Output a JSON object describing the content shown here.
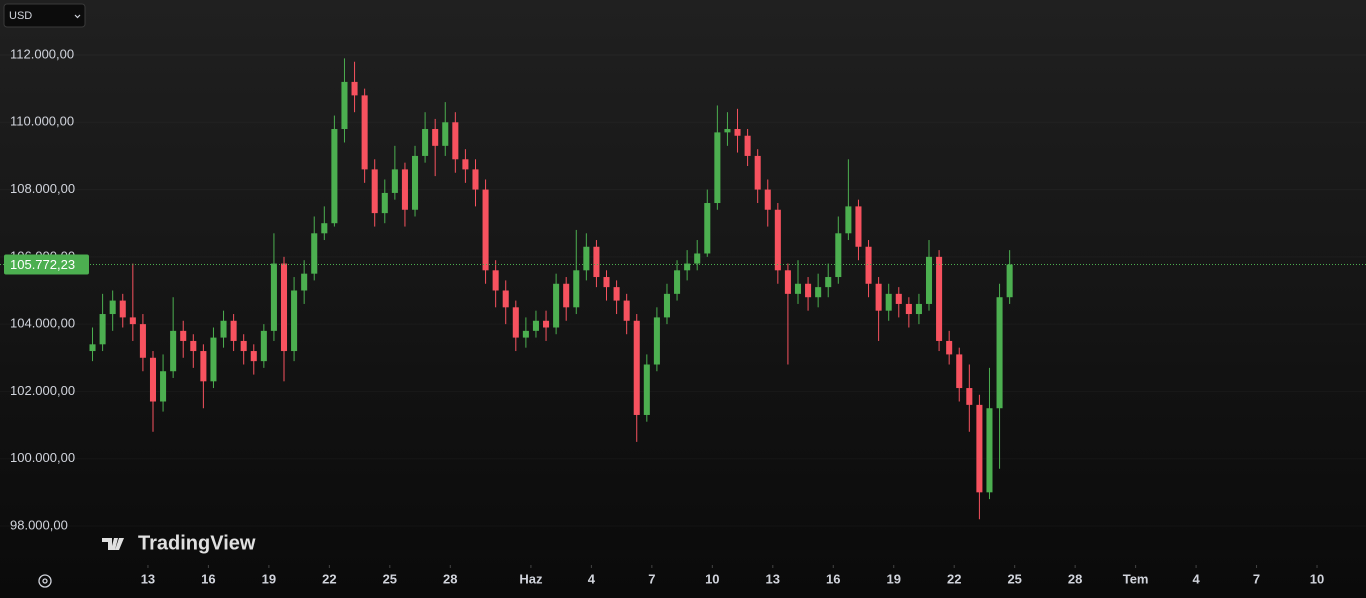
{
  "chart_data": {
    "type": "candlestick",
    "currency": "USD",
    "brand": "TradingView",
    "up_color": "#4caf50",
    "down_color": "#f7525f",
    "ylim": [
      96840,
      113635
    ],
    "yticks": [
      {
        "value": 98000,
        "label": "98.000,00"
      },
      {
        "value": 100000,
        "label": "100.000,00"
      },
      {
        "value": 102000,
        "label": "102.000,00"
      },
      {
        "value": 104000,
        "label": "104.000,00"
      },
      {
        "value": 106000,
        "label": "106.000,00"
      },
      {
        "value": 108000,
        "label": "108.000,00"
      },
      {
        "value": 110000,
        "label": "110.000,00"
      },
      {
        "value": 112000,
        "label": "112.000,00"
      }
    ],
    "xlim": [
      5.66,
      73.43
    ],
    "xticks": [
      13,
      16,
      19,
      22,
      25,
      28,
      {
        "value": 32,
        "label": "Haz"
      },
      {
        "value": 35,
        "label": "4"
      },
      {
        "value": 38,
        "label": "7"
      },
      {
        "value": 41,
        "label": "10"
      },
      {
        "value": 44,
        "label": "13"
      },
      {
        "value": 47,
        "label": "16"
      },
      {
        "value": 50,
        "label": "19"
      },
      {
        "value": 53,
        "label": "22"
      },
      {
        "value": 56,
        "label": "25"
      },
      {
        "value": 59,
        "label": "28"
      },
      {
        "value": 62,
        "label": "Tem"
      },
      {
        "value": 65,
        "label": "4"
      },
      {
        "value": 68,
        "label": "7"
      },
      {
        "value": 71,
        "label": "10"
      }
    ],
    "last_price": {
      "value": 105772.23,
      "label": "105.772,23"
    },
    "x": [
      10.25,
      10.75,
      11.25,
      11.75,
      12.25,
      12.75,
      13.25,
      13.75,
      14.25,
      14.75,
      15.25,
      15.75,
      16.25,
      16.75,
      17.25,
      17.75,
      18.25,
      18.75,
      19.25,
      19.75,
      20.25,
      20.75,
      21.25,
      21.75,
      22.25,
      22.75,
      23.25,
      23.75,
      24.25,
      24.75,
      25.25,
      25.75,
      26.25,
      26.75,
      27.25,
      27.75,
      28.25,
      28.75,
      29.25,
      29.75,
      30.25,
      30.75,
      31.25,
      31.75,
      32.25,
      32.75,
      33.25,
      33.75,
      34.25,
      34.75,
      35.25,
      35.75,
      36.25,
      36.75,
      37.25,
      37.75,
      38.25,
      38.75,
      39.25,
      39.75,
      40.25,
      40.75,
      41.25,
      41.75,
      42.25,
      42.75,
      43.25,
      43.75,
      44.25,
      44.75,
      45.25,
      45.75,
      46.25,
      46.75,
      47.25,
      47.75,
      48.25,
      48.75,
      49.25,
      49.75,
      50.25,
      50.75,
      51.25,
      51.75,
      52.25,
      52.75,
      53.25,
      53.75,
      54.25,
      54.75,
      55.25,
      55.75
    ],
    "open": [
      103200,
      103400,
      104300,
      104700,
      104200,
      104000,
      103000,
      101700,
      102600,
      103800,
      103500,
      103200,
      102300,
      103600,
      104100,
      103500,
      103200,
      102900,
      103800,
      105800,
      103200,
      105000,
      105500,
      106700,
      107000,
      109800,
      111200,
      110800,
      108600,
      107300,
      107900,
      108600,
      107400,
      109000,
      109800,
      109300,
      110000,
      108900,
      108600,
      108000,
      105600,
      105000,
      104500,
      103600,
      103800,
      104100,
      103900,
      105200,
      104500,
      105600,
      106300,
      105400,
      105100,
      104700,
      104100,
      101300,
      102800,
      104200,
      104900,
      105600,
      105800,
      106100,
      107600,
      109700,
      109800,
      109600,
      109000,
      108000,
      107400,
      105600,
      104900,
      105200,
      104800,
      105100,
      105400,
      106700,
      107500,
      106300,
      105200,
      104400,
      104900,
      104600,
      104300,
      104600,
      106000,
      103500,
      103100,
      102100,
      101600,
      99000,
      101500,
      104800
    ],
    "high": [
      103900,
      104900,
      105000,
      104900,
      105800,
      104300,
      103200,
      103100,
      104800,
      104100,
      103700,
      103400,
      103900,
      104400,
      104300,
      103700,
      103400,
      104000,
      106700,
      106000,
      105400,
      105900,
      107200,
      107500,
      110200,
      111900,
      111800,
      111000,
      108900,
      108300,
      109300,
      108800,
      109300,
      110300,
      110100,
      110600,
      110300,
      109200,
      108900,
      108300,
      105900,
      105300,
      104700,
      104200,
      104400,
      104400,
      105500,
      105400,
      106800,
      106700,
      106500,
      105600,
      105300,
      104900,
      104300,
      103100,
      104500,
      105200,
      105900,
      106200,
      106500,
      108000,
      110500,
      110300,
      110400,
      109800,
      109200,
      108300,
      107600,
      105800,
      105900,
      105400,
      105500,
      105800,
      107200,
      108900,
      107700,
      106500,
      105400,
      105200,
      105100,
      104800,
      104900,
      106500,
      106200,
      103800,
      103300,
      102800,
      101900,
      102700,
      105200,
      106200
    ],
    "low": [
      102900,
      103200,
      103800,
      103900,
      103500,
      102600,
      100800,
      101400,
      102400,
      103000,
      102700,
      101500,
      102100,
      103300,
      103200,
      102800,
      102500,
      102700,
      103500,
      102300,
      102900,
      104600,
      105300,
      106500,
      106900,
      109400,
      110300,
      108200,
      106900,
      107000,
      107700,
      106900,
      107200,
      108800,
      108400,
      109000,
      108500,
      108200,
      107500,
      105200,
      104500,
      104000,
      103200,
      103300,
      103600,
      103500,
      103700,
      104100,
      104300,
      105300,
      105100,
      104700,
      104300,
      103700,
      100500,
      101100,
      102600,
      104000,
      104700,
      105300,
      105600,
      106000,
      107400,
      109300,
      109100,
      108700,
      107600,
      106900,
      105200,
      102800,
      104600,
      104400,
      104500,
      104800,
      105200,
      106500,
      105900,
      104800,
      103500,
      104100,
      104200,
      103900,
      104000,
      104400,
      103200,
      102800,
      101700,
      100800,
      98200,
      98800,
      99700,
      104600
    ],
    "close": [
      103400,
      104300,
      104700,
      104200,
      104000,
      103000,
      101700,
      102600,
      103800,
      103500,
      103200,
      102300,
      103600,
      104100,
      103500,
      103200,
      102900,
      103800,
      105800,
      103200,
      105000,
      105500,
      106700,
      107000,
      109800,
      111200,
      110800,
      108600,
      107300,
      107900,
      108600,
      107400,
      109000,
      109800,
      109300,
      110000,
      108900,
      108600,
      108000,
      105600,
      105000,
      104500,
      103600,
      103800,
      104100,
      103900,
      105200,
      104500,
      105600,
      106300,
      105400,
      105100,
      104700,
      104100,
      101300,
      102800,
      104200,
      104900,
      105600,
      105800,
      106100,
      107600,
      109700,
      109800,
      109600,
      109000,
      108000,
      107400,
      105600,
      104900,
      105200,
      104800,
      105100,
      105400,
      106700,
      107500,
      106300,
      105200,
      104400,
      104900,
      104600,
      104300,
      104600,
      106000,
      103500,
      103100,
      102100,
      101600,
      99000,
      101500,
      104800,
      105772.23
    ]
  }
}
